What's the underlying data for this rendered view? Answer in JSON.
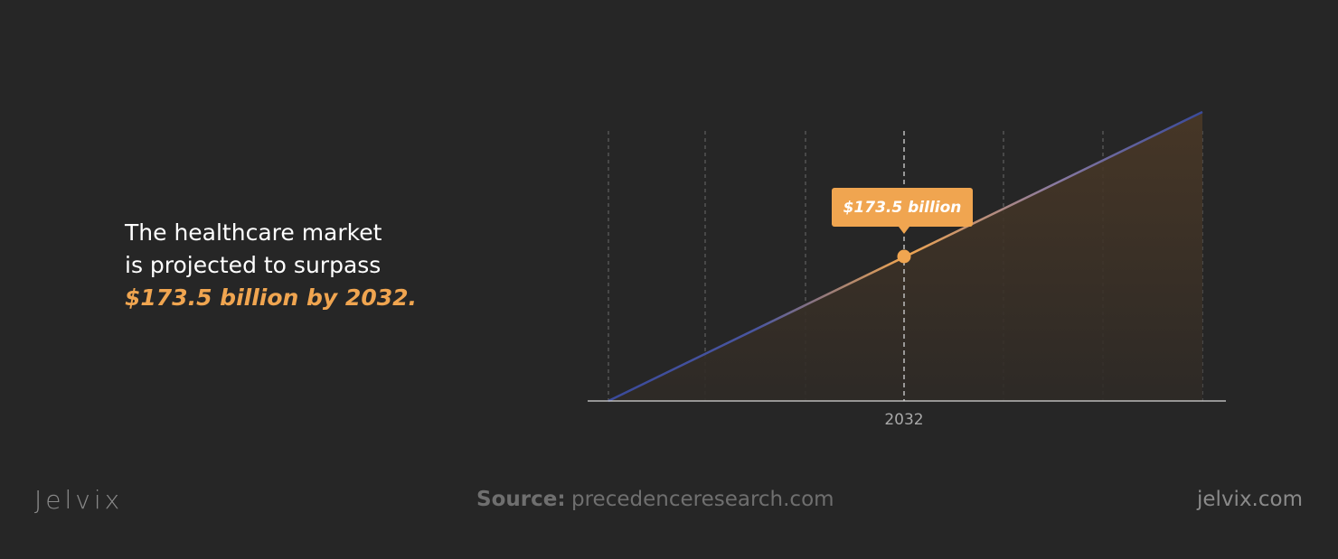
{
  "headline": {
    "lines": [
      "The healthcare market",
      "is projected to surpass"
    ],
    "highlight": "$173.5 billion by 2032."
  },
  "chart": {
    "callout": "$173.5 billion",
    "x_label": "2032"
  },
  "footer": {
    "logo": "Jelvix",
    "source_label": "Source:",
    "source": "precedenceresearch.com",
    "site": "jelvix.com"
  }
}
